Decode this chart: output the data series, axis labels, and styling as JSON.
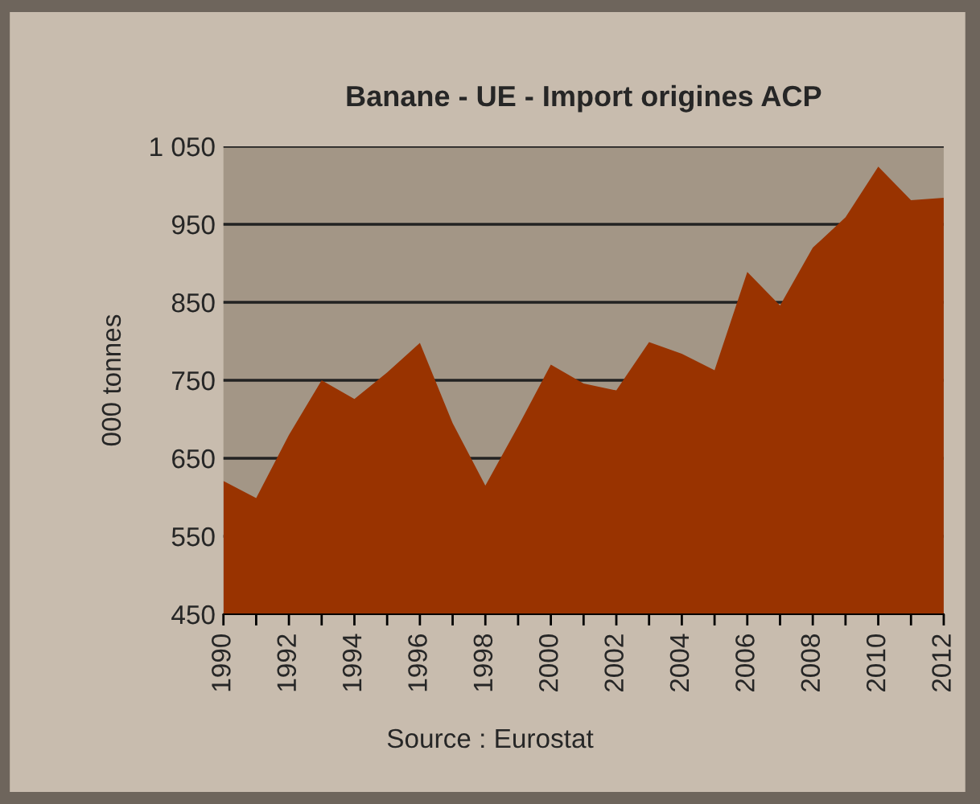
{
  "chart_data": {
    "type": "area",
    "title": "Banane - UE - Import origines ACP",
    "ylabel": "000 tonnes",
    "annotations": [
      "Source : Eurostat"
    ],
    "x": [
      1990,
      1991,
      1992,
      1993,
      1994,
      1995,
      1996,
      1997,
      1998,
      1999,
      2000,
      2001,
      2002,
      2003,
      2004,
      2005,
      2006,
      2007,
      2008,
      2009,
      2010,
      2011,
      2012
    ],
    "series": [
      {
        "color": "#993300",
        "values": [
          621,
          599,
          680,
          750,
          726,
          760,
          798,
          695,
          615,
          691,
          770,
          746,
          737,
          799,
          784,
          763,
          889,
          846,
          920,
          959,
          1024,
          981,
          984
        ]
      }
    ],
    "xlim": [
      1990,
      2012
    ],
    "xticks": [
      1990,
      {
        "value": 1991,
        "label": null
      },
      1992,
      {
        "value": 1993,
        "label": null
      },
      1994,
      {
        "value": 1995,
        "label": null
      },
      1996,
      {
        "value": 1997,
        "label": null
      },
      1998,
      {
        "value": 1999,
        "label": null
      },
      2000,
      {
        "value": 2001,
        "label": null
      },
      2002,
      {
        "value": 2003,
        "label": null
      },
      2004,
      {
        "value": 2005,
        "label": null
      },
      2006,
      {
        "value": 2007,
        "label": null
      },
      2008,
      {
        "value": 2009,
        "label": null
      },
      2010,
      {
        "value": 2011,
        "label": null
      },
      2012
    ],
    "ylim": [
      450,
      1050
    ],
    "yticks": [
      450,
      550,
      650,
      750,
      850,
      950,
      {
        "value": 1050,
        "label": "1 050"
      }
    ],
    "grid": "y",
    "legend": false
  }
}
